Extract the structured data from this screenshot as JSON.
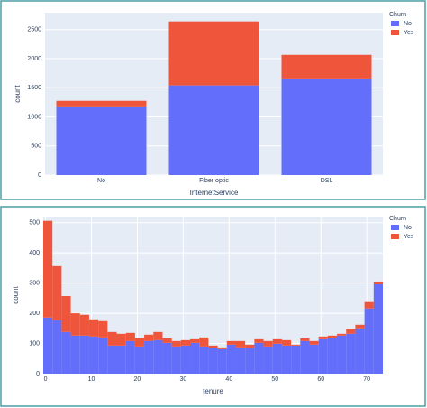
{
  "chart_data": [
    {
      "type": "bar",
      "categories": [
        "No",
        "Fiber optic",
        "DSL"
      ],
      "series": [
        {
          "name": "No",
          "color": "#636efa",
          "values": [
            1180,
            1540,
            1660
          ]
        },
        {
          "name": "Yes",
          "color": "#ef553b",
          "values": [
            95,
            1100,
            405
          ]
        }
      ],
      "x_label": "InternetService",
      "y_label": "count",
      "legend_title": "Churn",
      "ylim": [
        0,
        2790
      ],
      "yticks": [
        0,
        500,
        1000,
        1500,
        2000,
        2500
      ],
      "grid": true
    },
    {
      "type": "histogram",
      "bins": [
        -0.5,
        1.5,
        3.5,
        5.5,
        7.5,
        9.5,
        11.5,
        13.5,
        15.5,
        17.5,
        19.5,
        21.5,
        23.5,
        25.5,
        27.5,
        29.5,
        31.5,
        33.5,
        35.5,
        37.5,
        39.5,
        41.5,
        43.5,
        45.5,
        47.5,
        49.5,
        51.5,
        53.5,
        55.5,
        57.5,
        59.5,
        61.5,
        63.5,
        65.5,
        67.5,
        69.5,
        71.5,
        73.5
      ],
      "series": [
        {
          "name": "No",
          "color": "#636efa",
          "values": [
            186,
            177,
            138,
            126,
            126,
            123,
            120,
            93,
            93,
            108,
            90,
            108,
            111,
            102,
            90,
            93,
            102,
            90,
            84,
            81,
            96,
            87,
            84,
            102,
            90,
            99,
            93,
            93,
            108,
            96,
            114,
            117,
            126,
            132,
            150,
            216,
            296
          ]
        },
        {
          "name": "Yes",
          "color": "#ef553b",
          "values": [
            320,
            179,
            119,
            74,
            69,
            57,
            54,
            45,
            39,
            27,
            27,
            21,
            27,
            15,
            18,
            18,
            12,
            30,
            9,
            6,
            12,
            21,
            12,
            12,
            18,
            15,
            18,
            3,
            9,
            12,
            9,
            9,
            6,
            15,
            12,
            21,
            9
          ]
        }
      ],
      "x_label": "tenure",
      "y_label": "count",
      "legend_title": "Churn",
      "xlim": [
        -0.5,
        73.5
      ],
      "xticks": [
        0,
        10,
        20,
        30,
        40,
        50,
        60,
        70
      ],
      "ylim": [
        0,
        520
      ],
      "yticks": [
        0,
        100,
        200,
        300,
        400,
        500
      ],
      "grid": true
    }
  ]
}
